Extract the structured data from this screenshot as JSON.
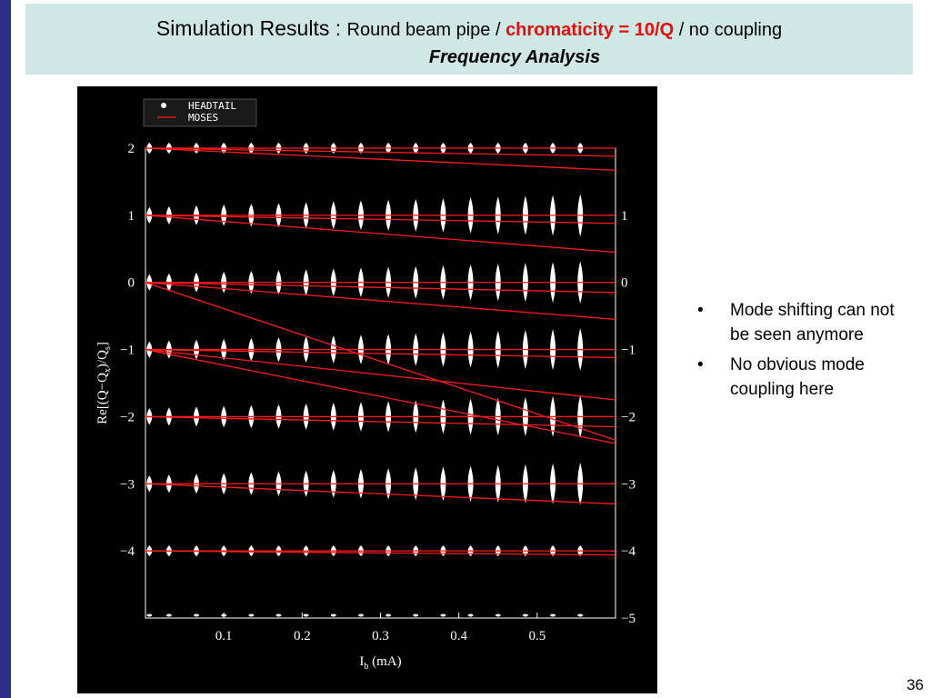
{
  "slide": {
    "title_main": "Simulation Results  : ",
    "title_sub1": "Round beam pipe / ",
    "title_red": "chromaticity = 10/Q",
    "title_sub2": " / no coupling",
    "subtitle": "Frequency Analysis",
    "page_number": "36"
  },
  "bullets": [
    {
      "text": "Mode shifting can not be seen anymore"
    },
    {
      "text": "No obvious mode coupling here"
    }
  ],
  "colors": {
    "left_bar": "#2e2e8a",
    "title_bg": "#cfe8e6",
    "highlight": "#e01010",
    "plot_bg": "#000000",
    "moses_line": "#ff1a1a",
    "headtail_marker": "#ffffff"
  },
  "chart_data": {
    "type": "scatter",
    "xlabel": "I_b  (mA)",
    "ylabel": "Re[(Q−Q_x)/Q_s]",
    "xlim": [
      0,
      0.6
    ],
    "ylim": [
      -5,
      2
    ],
    "x_ticks": [
      "0.1",
      "0.2",
      "0.3",
      "0.4",
      "0.5"
    ],
    "x_tick_values": [
      0.1,
      0.2,
      0.3,
      0.4,
      0.5
    ],
    "y_ticks_left": [
      "2",
      "1",
      "0",
      "−1",
      "−2",
      "−3",
      "−4"
    ],
    "y_tick_values_left": [
      2,
      1,
      0,
      -1,
      -2,
      -3,
      -4
    ],
    "y_ticks_right": [
      "1",
      "0",
      "−1",
      "−2",
      "−3",
      "−4",
      "−5"
    ],
    "y_tick_values_right": [
      1,
      0,
      -1,
      -2,
      -3,
      -4,
      -5
    ],
    "legend": {
      "position": "top-left",
      "entries": [
        "HEADTAIL",
        "MOSES"
      ]
    },
    "series": [
      {
        "name": "HEADTAIL",
        "kind": "markers",
        "x": [
          0.005,
          0.03,
          0.065,
          0.1,
          0.135,
          0.17,
          0.205,
          0.24,
          0.275,
          0.31,
          0.345,
          0.38,
          0.415,
          0.45,
          0.485,
          0.52,
          0.555
        ],
        "mode_levels": [
          2,
          1,
          0,
          -1,
          -2,
          -3,
          -4,
          -5
        ]
      },
      {
        "name": "MOSES",
        "kind": "lines",
        "lines": [
          {
            "x": [
              0,
              0.6
            ],
            "y": [
              2.0,
              2.0
            ]
          },
          {
            "x": [
              0,
              0.6
            ],
            "y": [
              2.0,
              1.88
            ]
          },
          {
            "x": [
              0,
              0.6
            ],
            "y": [
              2.0,
              1.67
            ]
          },
          {
            "x": [
              0,
              0.6
            ],
            "y": [
              1.0,
              1.0
            ]
          },
          {
            "x": [
              0,
              0.6
            ],
            "y": [
              1.0,
              0.88
            ]
          },
          {
            "x": [
              0,
              0.6
            ],
            "y": [
              1.0,
              0.45
            ]
          },
          {
            "x": [
              0,
              0.6
            ],
            "y": [
              0.0,
              0.0
            ]
          },
          {
            "x": [
              0,
              0.6
            ],
            "y": [
              0.0,
              -0.15
            ]
          },
          {
            "x": [
              0,
              0.6
            ],
            "y": [
              0.0,
              -0.55
            ]
          },
          {
            "x": [
              0,
              0.6
            ],
            "y": [
              0.0,
              -2.35
            ]
          },
          {
            "x": [
              0,
              0.6
            ],
            "y": [
              -1.0,
              -1.0
            ]
          },
          {
            "x": [
              0,
              0.6
            ],
            "y": [
              -1.0,
              -1.12
            ]
          },
          {
            "x": [
              0,
              0.6
            ],
            "y": [
              -1.0,
              -1.75
            ]
          },
          {
            "x": [
              0,
              0.6
            ],
            "y": [
              -1.0,
              -2.4
            ]
          },
          {
            "x": [
              0,
              0.6
            ],
            "y": [
              -2.0,
              -2.0
            ]
          },
          {
            "x": [
              0,
              0.6
            ],
            "y": [
              -2.0,
              -2.15
            ]
          },
          {
            "x": [
              0,
              0.6
            ],
            "y": [
              -3.0,
              -3.0
            ]
          },
          {
            "x": [
              0,
              0.6
            ],
            "y": [
              -3.0,
              -3.3
            ]
          },
          {
            "x": [
              0,
              0.6
            ],
            "y": [
              -4.0,
              -4.0
            ]
          },
          {
            "x": [
              0,
              0.6
            ],
            "y": [
              -4.0,
              -4.06
            ]
          }
        ]
      }
    ]
  }
}
